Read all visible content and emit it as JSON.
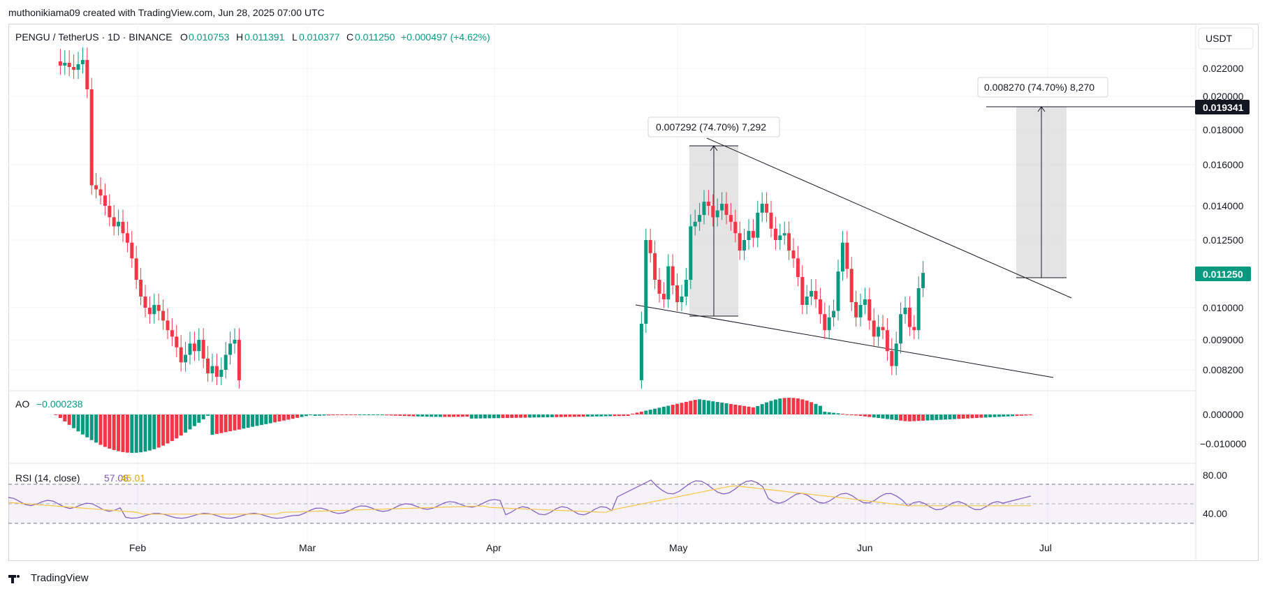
{
  "header": {
    "credit": "muthonikiama09 created with TradingView.com, Jun 28, 2025 07:00 UTC"
  },
  "legend": {
    "symbol": "PENGU / TetherUS · 1D · BINANCE",
    "o_label": "O",
    "o": "0.010753",
    "h_label": "H",
    "h": "0.011391",
    "l_label": "L",
    "l": "0.010377",
    "c_label": "C",
    "c": "0.011250",
    "change": "+0.000497 (+4.62%)"
  },
  "currency_button": "USDT",
  "colors": {
    "up": "#089981",
    "down": "#f23645",
    "rsi": "#7e57c2",
    "rsi_ma": "#f7c548",
    "badge_dark": "#131722",
    "badge_green": "#089981",
    "measure_fill": "#d9d9d9"
  },
  "measure_labels": {
    "left": "0.007292 (74.70%) 7,292",
    "right": "0.008270 (74.70%) 8,270"
  },
  "price_badges": {
    "target": "0.019341",
    "last": "0.011250"
  },
  "ao": {
    "title": "AO",
    "value": "−0.000238",
    "ticks": [
      "0.000000",
      "−0.010000"
    ]
  },
  "rsi": {
    "title": "RSI (14, close)",
    "value": "57.08",
    "ma_value": "45.01",
    "ticks": [
      "80.00",
      "40.00"
    ]
  },
  "footer": {
    "brand": "TradingView"
  },
  "chart_data": {
    "type": "candlestick",
    "title": "PENGU / TetherUS · 1D · BINANCE",
    "x_axis_labels": [
      "Feb",
      "Mar",
      "Apr",
      "May",
      "Jun",
      "Jul"
    ],
    "y_axis_ticks": [
      "0.022000",
      "0.020000",
      "0.018000",
      "0.016000",
      "0.014000",
      "0.012500",
      "0.010000",
      "0.009000",
      "0.008200"
    ],
    "series_close": [
      0.0225,
      0.0222,
      0.0224,
      0.0221,
      0.0219,
      0.0223,
      0.0226,
      0.0205,
      0.015,
      0.0148,
      0.0145,
      0.014,
      0.0135,
      0.0131,
      0.0133,
      0.0128,
      0.0124,
      0.0118,
      0.011,
      0.0104,
      0.01,
      0.0098,
      0.0101,
      0.0099,
      0.0096,
      0.0093,
      0.0091,
      0.0088,
      0.0084,
      0.0086,
      0.0089,
      0.0087,
      0.009,
      0.0085,
      0.0081,
      0.0083,
      0.008,
      0.0082,
      0.0086,
      0.0089,
      0.009,
      0.0079
    ],
    "series_close_late": [
      0.0079,
      0.0095,
      0.0125,
      0.012,
      0.011,
      0.0105,
      0.0103,
      0.0115,
      0.0108,
      0.0102,
      0.0104,
      0.011,
      0.0131,
      0.0133,
      0.0136,
      0.0142,
      0.014,
      0.0135,
      0.0138,
      0.0141,
      0.0136,
      0.0133,
      0.0128,
      0.0121,
      0.0125,
      0.0129,
      0.0126,
      0.0137,
      0.0141,
      0.0137,
      0.013,
      0.0125,
      0.0127,
      0.0128,
      0.0121,
      0.0118,
      0.0111,
      0.0101,
      0.0104,
      0.0106,
      0.0103,
      0.0098,
      0.0093,
      0.0097,
      0.0099,
      0.0113,
      0.0124,
      0.0114,
      0.0102,
      0.0097,
      0.0101,
      0.0103,
      0.0096,
      0.0091,
      0.0094,
      0.0093,
      0.0087,
      0.0083,
      0.0089,
      0.0098,
      0.01,
      0.0094,
      0.0093,
      0.0107,
      0.01125
    ],
    "annotations": [
      "0.007292 (74.70%) 7,292",
      "0.008270 (74.70%) 8,270"
    ],
    "target_price": 0.019341,
    "last_price": 0.01125
  }
}
